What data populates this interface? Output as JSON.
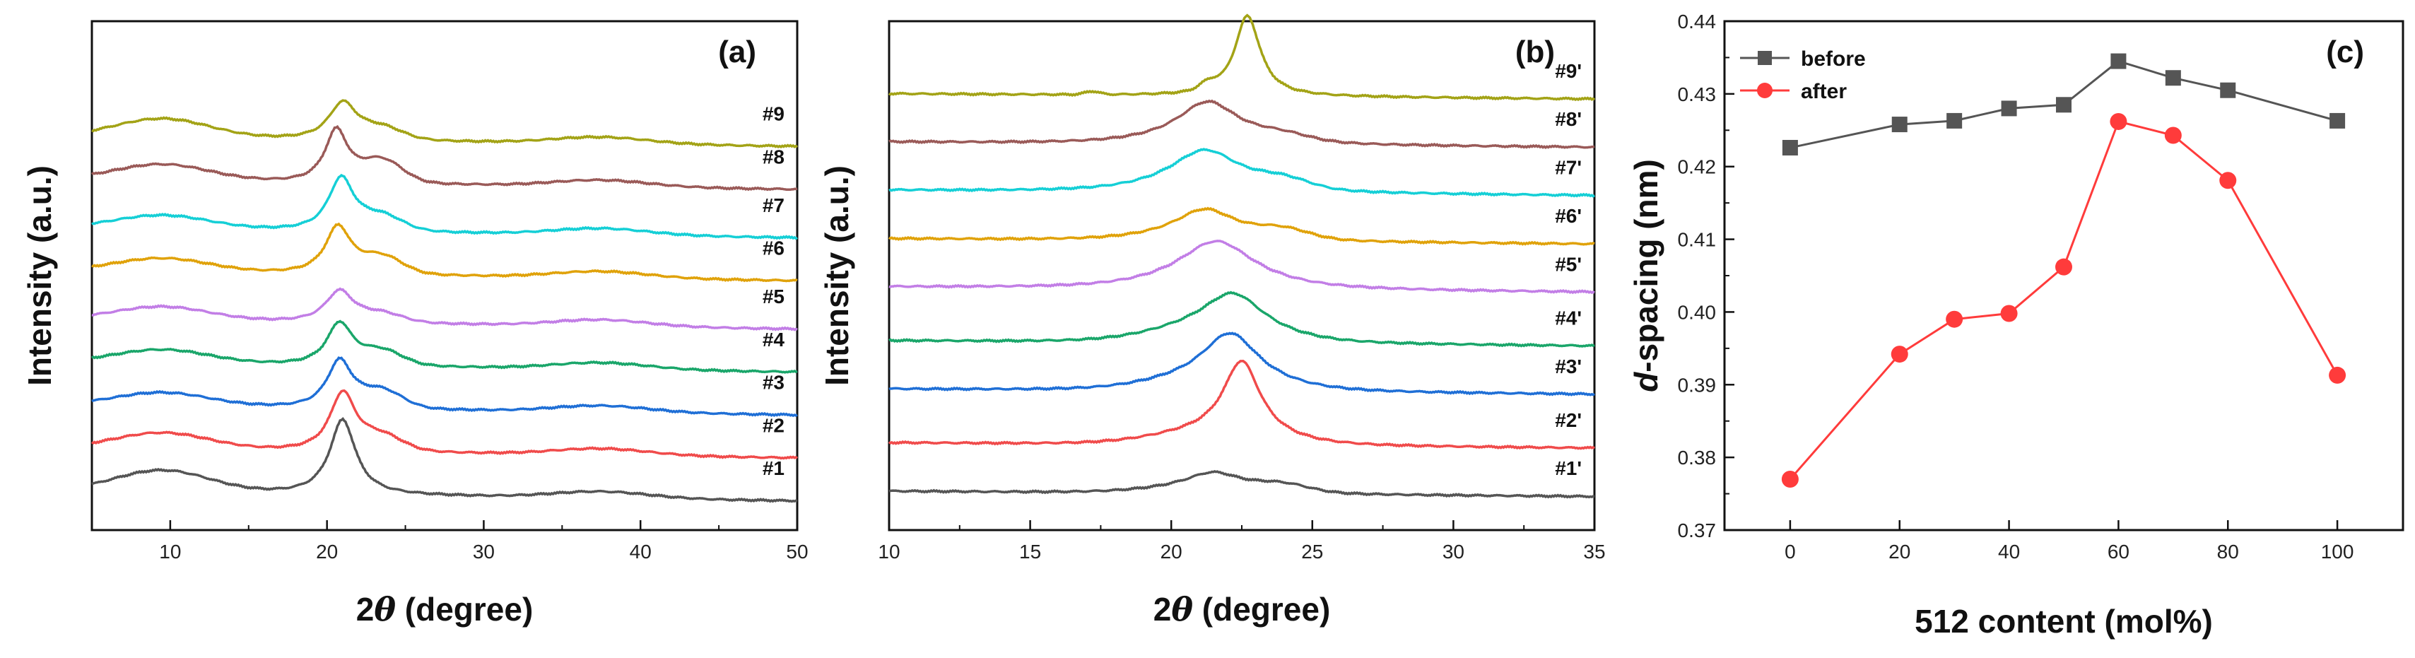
{
  "chart_data": [
    {
      "type": "line",
      "panel_label": "(a)",
      "xlabel_prefix": "2",
      "xlabel_theta": "θ",
      "xlabel_suffix": " (degree)",
      "ylabel": "Intensity (a.u.)",
      "xlim": [
        5,
        50
      ],
      "xticks": [
        "10",
        "20",
        "30",
        "40",
        "50"
      ],
      "series": [
        {
          "name": "#1",
          "color": "#555555",
          "baseline": 0.0,
          "peak": 21.0,
          "height": 0.14,
          "width": 1.0,
          "amorph": 0.04,
          "shoulder": 0.0
        },
        {
          "name": "#2",
          "color": "#f04b4b",
          "baseline": 0.08,
          "peak": 21.0,
          "height": 0.11,
          "width": 1.0,
          "amorph": 0.03,
          "shoulder": 0.025
        },
        {
          "name": "#3",
          "color": "#1f6fd6",
          "baseline": 0.16,
          "peak": 20.8,
          "height": 0.09,
          "width": 1.0,
          "amorph": 0.025,
          "shoulder": 0.03
        },
        {
          "name": "#4",
          "color": "#1aa66a",
          "baseline": 0.24,
          "peak": 20.8,
          "height": 0.08,
          "width": 1.0,
          "amorph": 0.025,
          "shoulder": 0.025
        },
        {
          "name": "#5",
          "color": "#c27ee6",
          "baseline": 0.32,
          "peak": 20.8,
          "height": 0.06,
          "width": 1.1,
          "amorph": 0.025,
          "shoulder": 0.015
        },
        {
          "name": "#6",
          "color": "#e0a20a",
          "baseline": 0.41,
          "peak": 20.7,
          "height": 0.09,
          "width": 1.0,
          "amorph": 0.025,
          "shoulder": 0.03
        },
        {
          "name": "#7",
          "color": "#15cfd6",
          "baseline": 0.49,
          "peak": 20.9,
          "height": 0.1,
          "width": 1.0,
          "amorph": 0.025,
          "shoulder": 0.025
        },
        {
          "name": "#8",
          "color": "#9a5a58",
          "baseline": 0.58,
          "peak": 20.6,
          "height": 0.1,
          "width": 0.9,
          "amorph": 0.03,
          "shoulder": 0.04
        },
        {
          "name": "#9",
          "color": "#a3a316",
          "baseline": 0.66,
          "peak": 21.0,
          "height": 0.07,
          "width": 1.1,
          "amorph": 0.035,
          "shoulder": 0.02
        }
      ]
    },
    {
      "type": "line",
      "panel_label": "(b)",
      "xlabel_prefix": "2",
      "xlabel_theta": "θ",
      "xlabel_suffix": " (degree)",
      "ylabel": "Intensity (a.u.)",
      "xlim": [
        10,
        35
      ],
      "xticks": [
        "10",
        "15",
        "20",
        "25",
        "30",
        "35"
      ],
      "series": [
        {
          "name": "#1'",
          "color": "#555555",
          "baseline": 0.0,
          "peak": 21.5,
          "height": 0.03,
          "width": 1.2,
          "broad": 0.01,
          "shoulder": 0.012
        },
        {
          "name": "#2'",
          "color": "#f04b4b",
          "baseline": 0.09,
          "peak": 22.5,
          "height": 0.14,
          "width": 0.8,
          "broad": 0.02,
          "shoulder": 0.0
        },
        {
          "name": "#3'",
          "color": "#1f6fd6",
          "baseline": 0.19,
          "peak": 22.1,
          "height": 0.09,
          "width": 1.2,
          "broad": 0.02,
          "shoulder": 0.0
        },
        {
          "name": "#4'",
          "color": "#1aa66a",
          "baseline": 0.28,
          "peak": 22.2,
          "height": 0.07,
          "width": 1.3,
          "broad": 0.025,
          "shoulder": 0.0
        },
        {
          "name": "#5'",
          "color": "#c27ee6",
          "baseline": 0.38,
          "peak": 21.6,
          "height": 0.08,
          "width": 1.6,
          "broad": 0.01,
          "shoulder": 0.0
        },
        {
          "name": "#6'",
          "color": "#e0a20a",
          "baseline": 0.47,
          "peak": 21.2,
          "height": 0.05,
          "width": 1.3,
          "broad": 0.01,
          "shoulder": 0.015
        },
        {
          "name": "#7'",
          "color": "#15cfd6",
          "baseline": 0.56,
          "peak": 21.2,
          "height": 0.07,
          "width": 1.5,
          "broad": 0.01,
          "shoulder": 0.015
        },
        {
          "name": "#8'",
          "color": "#9a5a58",
          "baseline": 0.65,
          "peak": 21.3,
          "height": 0.07,
          "width": 1.3,
          "broad": 0.01,
          "shoulder": 0.01
        },
        {
          "name": "#9'",
          "color": "#a3a316",
          "baseline": 0.74,
          "peak": 22.7,
          "height": 0.15,
          "width": 0.55,
          "broad": 0.0,
          "shoulder": 0.0
        }
      ]
    },
    {
      "type": "line",
      "panel_label": "(c)",
      "xlabel": "512 content (mol%)",
      "ylabel_italic": "d",
      "ylabel_rest": "-spacing (nm)",
      "xlim": [
        -12,
        112
      ],
      "ylim": [
        0.37,
        0.44
      ],
      "xticks": [
        0,
        20,
        40,
        60,
        80,
        100
      ],
      "xtick_labels": [
        "0",
        "20",
        "40",
        "60",
        "80",
        "100"
      ],
      "yticks": [
        0.37,
        0.38,
        0.39,
        0.4,
        0.41,
        0.42,
        0.43,
        0.44
      ],
      "ytick_labels": [
        "0.37",
        "0.38",
        "0.39",
        "0.40",
        "0.41",
        "0.42",
        "0.43",
        "0.44"
      ],
      "x": [
        0,
        20,
        30,
        40,
        50,
        60,
        70,
        80,
        100
      ],
      "series": [
        {
          "name": "before",
          "color": "#555555",
          "marker": "square",
          "values": [
            0.4226,
            0.4258,
            0.4263,
            0.428,
            0.4285,
            0.4345,
            0.4322,
            0.4305,
            0.4263
          ]
        },
        {
          "name": "after",
          "color": "#ff3b3b",
          "marker": "circle",
          "values": [
            0.377,
            0.3942,
            0.399,
            0.3998,
            0.4062,
            0.4262,
            0.4243,
            0.4181,
            0.3913
          ]
        }
      ]
    }
  ]
}
